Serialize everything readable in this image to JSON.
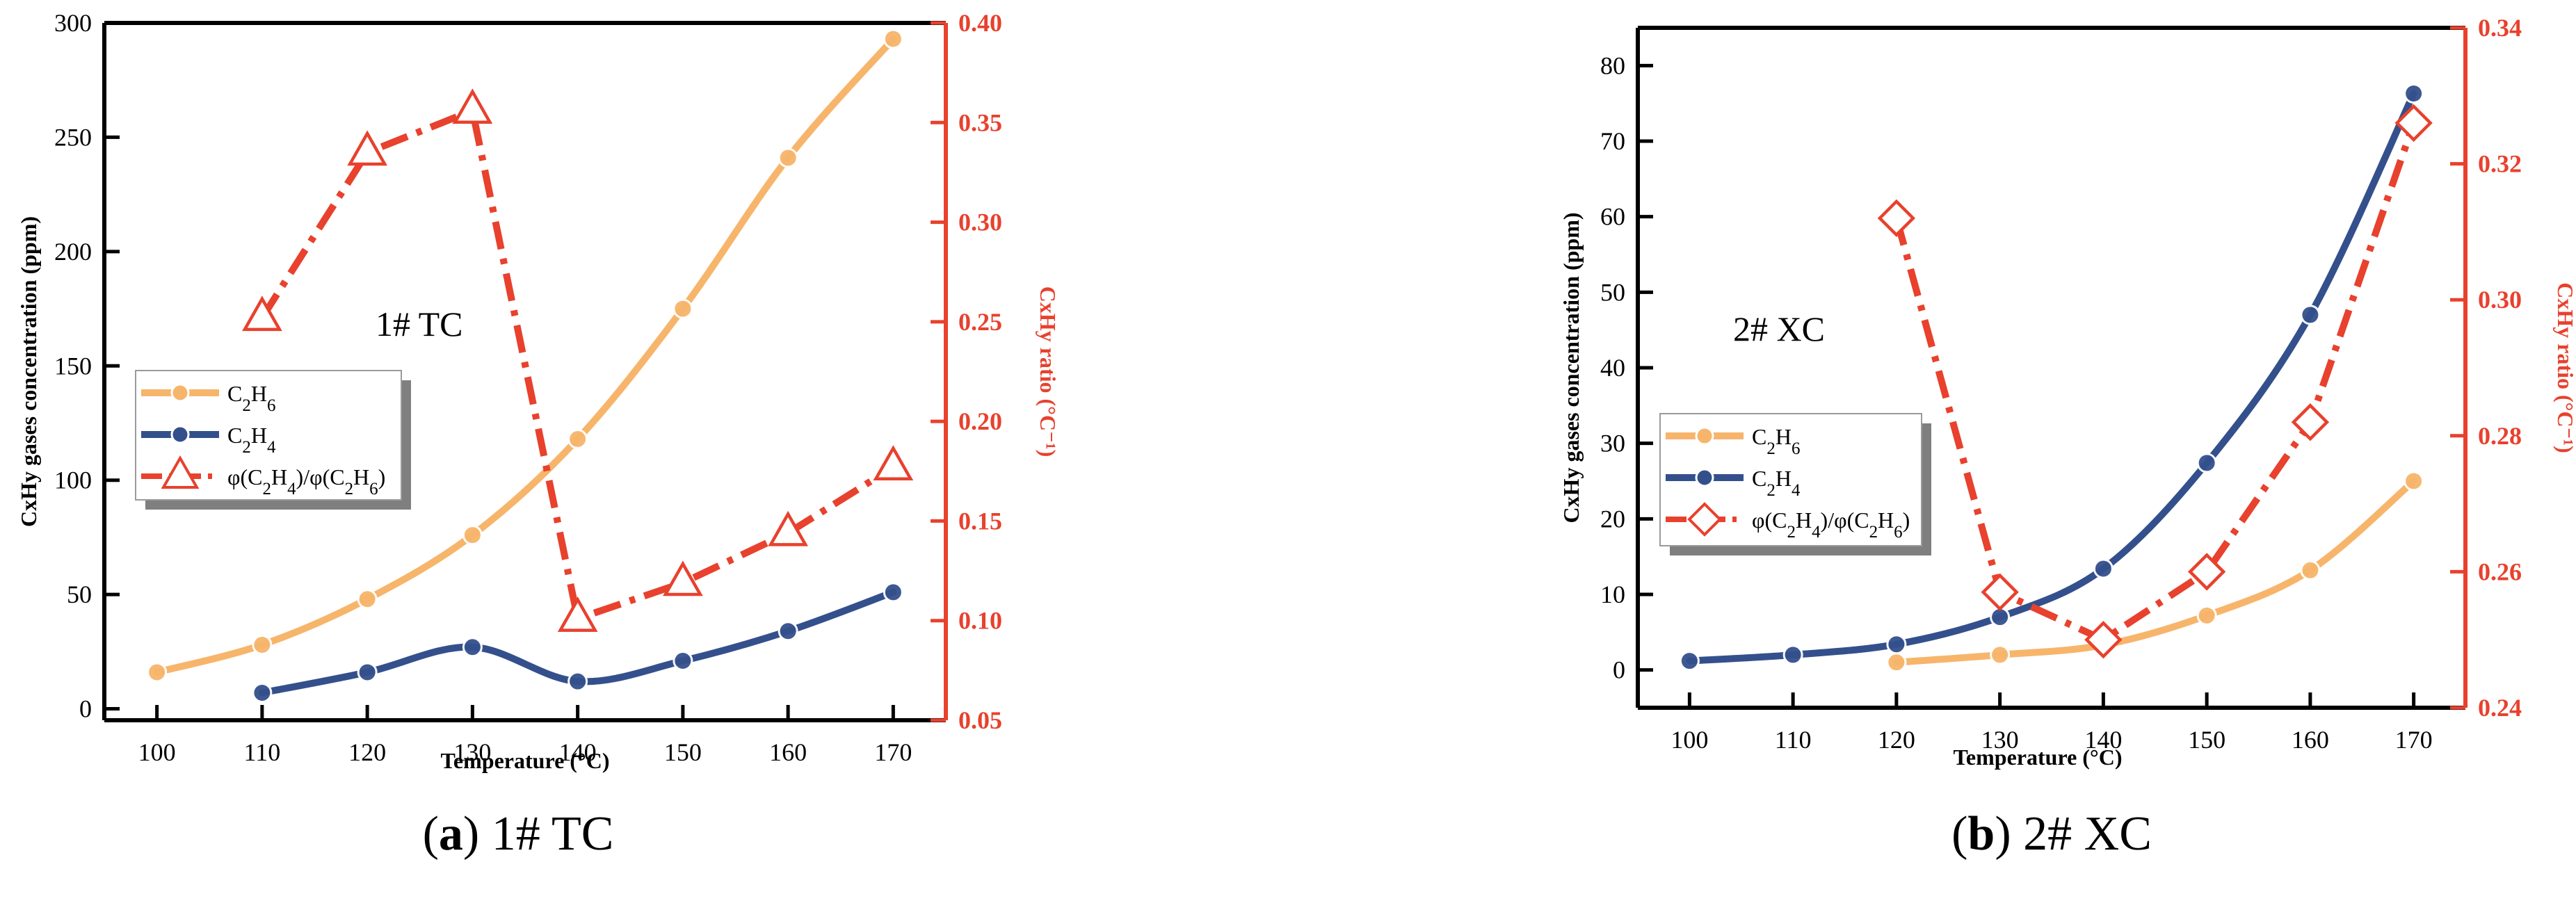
{
  "chart_data": [
    {
      "type": "line",
      "panel_label": "(a)",
      "panel_caption": "1# TC",
      "inner_label": "1# TC",
      "xlabel": "Temperature (°C)",
      "x_ticks": [
        "100",
        "110",
        "120",
        "130",
        "140",
        "150",
        "160",
        "170"
      ],
      "xlim": [
        95,
        175
      ],
      "ylabel_left": "CxHy gases concentration (ppm)",
      "ylim_left": [
        -5,
        300
      ],
      "yticks_left": [
        "0",
        "50",
        "100",
        "150",
        "200",
        "250",
        "300"
      ],
      "ylabel_right": "CxHy ratio (°C⁻¹)",
      "ylim_right": [
        0.05,
        0.4
      ],
      "yticks_right": [
        "0.05",
        "0.10",
        "0.15",
        "0.20",
        "0.25",
        "0.30",
        "0.35",
        "0.40"
      ],
      "legend": [
        "C2H6",
        "C2H4",
        "φ(C2H4)/φ(C2H6)"
      ],
      "series": [
        {
          "name": "C2H6",
          "axis": "left",
          "color": "#F7B56B",
          "x": [
            100,
            110,
            120,
            130,
            140,
            150,
            160,
            170
          ],
          "y": [
            16,
            28,
            48,
            76,
            118,
            175,
            241,
            293
          ]
        },
        {
          "name": "C2H4",
          "axis": "left",
          "color": "#34508C",
          "x": [
            110,
            120,
            130,
            140,
            150,
            160,
            170
          ],
          "y": [
            7,
            16,
            27,
            12,
            21,
            34,
            51
          ]
        },
        {
          "name": "φ(C2H4)/φ(C2H6)",
          "axis": "right",
          "color": "#E8412D",
          "x": [
            110,
            120,
            130,
            140,
            150,
            160,
            170
          ],
          "y": [
            0.252,
            0.335,
            0.356,
            0.101,
            0.119,
            0.144,
            0.177
          ]
        }
      ]
    },
    {
      "type": "line",
      "panel_label": "(b)",
      "panel_caption": "2# XC",
      "inner_label": "2# XC",
      "xlabel": "Temperature (°C)",
      "x_ticks": [
        "100",
        "110",
        "120",
        "130",
        "140",
        "150",
        "160",
        "170"
      ],
      "xlim": [
        95,
        175
      ],
      "ylabel_left": "CxHy gases concentration (ppm)",
      "ylim_left": [
        -5,
        85
      ],
      "yticks_left": [
        "0",
        "10",
        "20",
        "30",
        "40",
        "50",
        "60",
        "70",
        "80"
      ],
      "ylabel_right": "CxHy ratio (°C⁻¹)",
      "ylim_right": [
        0.24,
        0.34
      ],
      "yticks_right": [
        "0.24",
        "0.26",
        "0.28",
        "0.30",
        "0.32",
        "0.34"
      ],
      "legend": [
        "C2H6",
        "C2H4",
        "φ(C2H4)/φ(C2H6)"
      ],
      "series": [
        {
          "name": "C2H6",
          "axis": "left",
          "color": "#F7B56B",
          "x": [
            120,
            130,
            140,
            150,
            160,
            170
          ],
          "y": [
            1,
            2,
            3.3,
            7.2,
            13.2,
            25
          ]
        },
        {
          "name": "C2H4",
          "axis": "left",
          "color": "#34508C",
          "x": [
            100,
            110,
            120,
            130,
            140,
            150,
            160,
            170
          ],
          "y": [
            1.2,
            2,
            3.4,
            7,
            13.4,
            27.4,
            47,
            76.3
          ]
        },
        {
          "name": "φ(C2H4)/φ(C2H6)",
          "axis": "right",
          "color": "#E8412D",
          "x": [
            120,
            130,
            140,
            150,
            160,
            170
          ],
          "y": [
            0.312,
            0.257,
            0.25,
            0.26,
            0.282,
            0.326
          ]
        }
      ]
    }
  ]
}
